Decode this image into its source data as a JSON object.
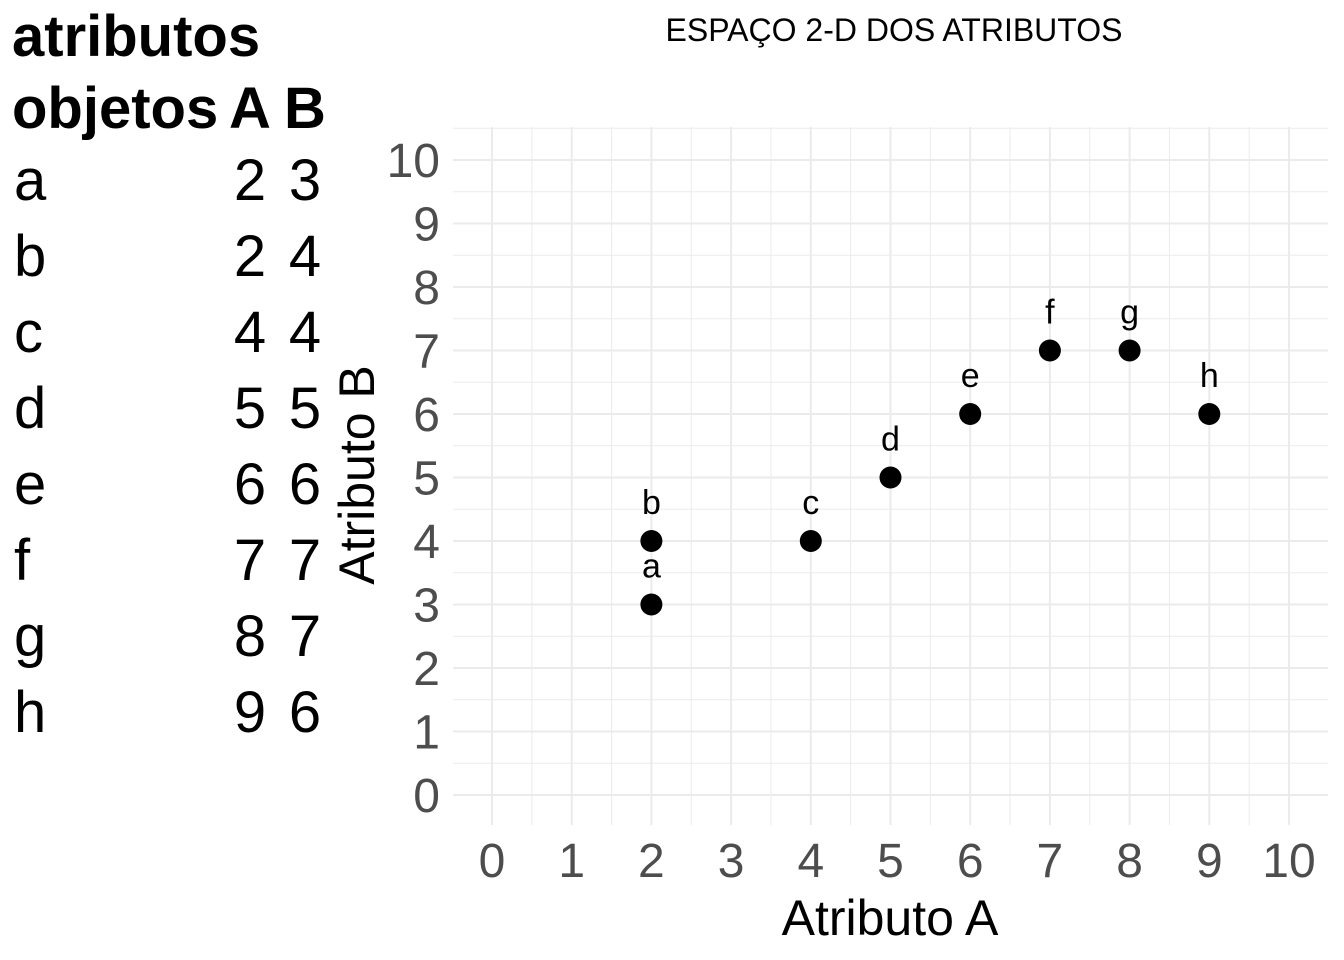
{
  "table": {
    "header": [
      "objetos",
      "A",
      "B"
    ],
    "caption": "atributos",
    "rows": [
      [
        "a",
        "2",
        "3"
      ],
      [
        "b",
        "2",
        "4"
      ],
      [
        "c",
        "4",
        "4"
      ],
      [
        "d",
        "5",
        "5"
      ],
      [
        "e",
        "6",
        "6"
      ],
      [
        "f",
        "7",
        "7"
      ],
      [
        "g",
        "8",
        "7"
      ],
      [
        "h",
        "9",
        "6"
      ]
    ]
  },
  "chart_data": {
    "type": "scatter",
    "title": "ESPAÇO 2-D DOS ATRIBUTOS",
    "xlabel": "Atributo A",
    "ylabel": "Atributo B",
    "xlim": [
      0,
      10
    ],
    "ylim": [
      0,
      10
    ],
    "xticks": [
      "0",
      "1",
      "2",
      "3",
      "4",
      "5",
      "6",
      "7",
      "8",
      "9",
      "10"
    ],
    "yticks": [
      "0",
      "1",
      "2",
      "3",
      "4",
      "5",
      "6",
      "7",
      "8",
      "9",
      "10"
    ],
    "grid": true,
    "points": [
      {
        "label": "a",
        "x": 2,
        "y": 3
      },
      {
        "label": "b",
        "x": 2,
        "y": 4
      },
      {
        "label": "c",
        "x": 4,
        "y": 4
      },
      {
        "label": "d",
        "x": 5,
        "y": 5
      },
      {
        "label": "e",
        "x": 6,
        "y": 6
      },
      {
        "label": "f",
        "x": 7,
        "y": 7
      },
      {
        "label": "g",
        "x": 8,
        "y": 7
      },
      {
        "label": "h",
        "x": 9,
        "y": 6
      }
    ],
    "point_color": "#000000",
    "grid_color": "#ebebeb",
    "tick_color": "#4d4d4d"
  }
}
